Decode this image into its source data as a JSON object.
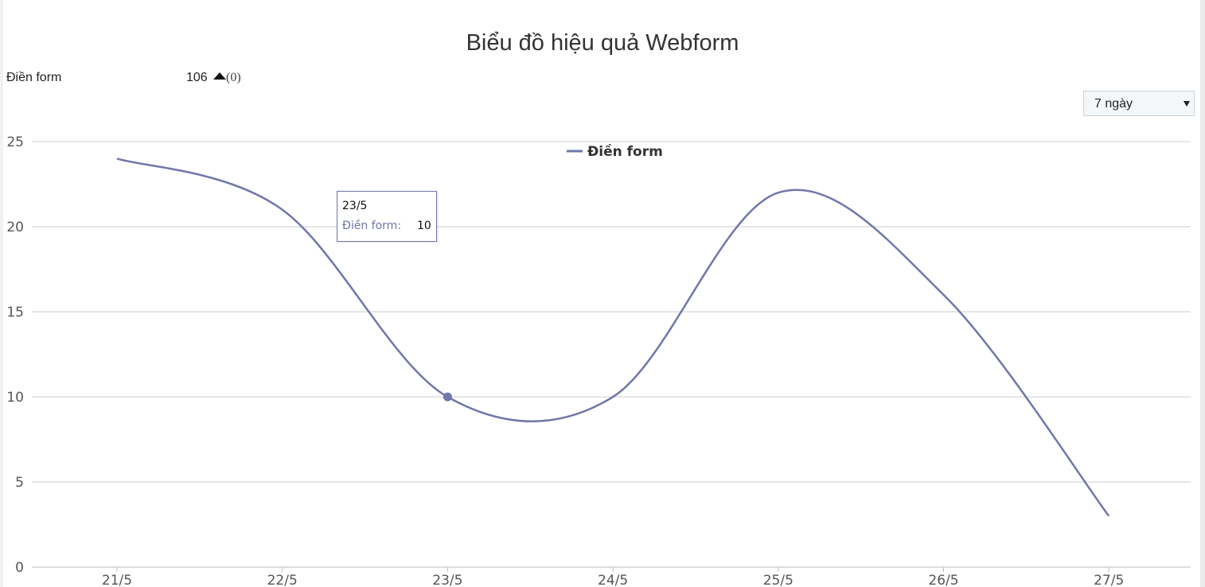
{
  "page": {
    "title": "Biểu đồ hiệu quả Webform"
  },
  "summary": {
    "label": "Điền form",
    "value": "106",
    "trend_icon": "triangle-up-icon",
    "change": "(0)"
  },
  "range_select": {
    "selected": "7 ngày"
  },
  "tooltip": {
    "date": "23/5",
    "series_label": "Điền form:",
    "value": "10"
  },
  "colors": {
    "series": "#6f77ab",
    "grid": "#cccccc",
    "axis_text": "#555555"
  },
  "chart_data": {
    "type": "line",
    "title": "Biểu đồ hiệu quả Webform",
    "xlabel": "",
    "ylabel": "",
    "categories": [
      "21/5",
      "22/5",
      "23/5",
      "24/5",
      "25/5",
      "26/5",
      "27/5"
    ],
    "series": [
      {
        "name": "Điền form",
        "values": [
          24,
          21,
          10,
          10,
          22,
          16,
          3
        ]
      }
    ],
    "ylim": [
      0,
      25
    ],
    "yticks": [
      0,
      5,
      10,
      15,
      20,
      25
    ],
    "grid": true,
    "smooth": true,
    "legend": "top-center",
    "highlighted_point": {
      "category": "23/5",
      "value": 10
    }
  }
}
